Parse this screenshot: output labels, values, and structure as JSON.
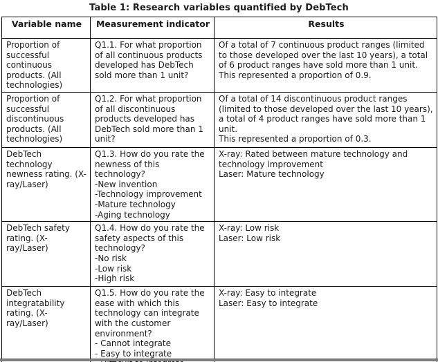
{
  "title": "Table 1: Research variables quantified by DebTech",
  "table": {
    "headers": [
      "Variable name",
      "Measurement indicator",
      "Results"
    ],
    "rows": [
      {
        "variable": "Proportion of successful continuous products. (All technologies)",
        "indicator": "Q1.1. For what proportion of all continuous products developed has DebTech sold more than 1 unit?",
        "results": [
          "Of a total of 7 continuous product ranges (limited to those developed over the last 10 years), a total of 6 product ranges have sold more than 1 unit.",
          "This represented a proportion of 0.9."
        ]
      },
      {
        "variable": "Proportion of successful discontinuous products. (All technologies)",
        "indicator": "Q1.2. For what proportion of all discontinuous products developed has DebTech sold more than 1 unit?",
        "results": [
          "Of a total of 14 discontinuous product ranges (limited to those developed over the last 10 years), a total of 4 product ranges have sold more than 1 unit.",
          "This represented a proportion of 0.3."
        ]
      },
      {
        "variable": "DebTech technology newness rating. (X-ray/Laser)",
        "indicator": [
          "Q1.3. How do you rate the newness of this technology?",
          "-New invention",
          "-Technology improvement",
          "-Mature technology",
          "-Aging technology"
        ],
        "results": [
          "X-ray: Rated between mature technology and technology improvement",
          "Laser: Mature technology"
        ]
      },
      {
        "variable": "DebTech safety rating. (X-ray/Laser)",
        "indicator": [
          "Q1.4. How do you rate the safety aspects of this technology?",
          "-No risk",
          "-Low risk",
          "-High risk"
        ],
        "results": [
          "X-ray: Low risk",
          "Laser: Low risk"
        ]
      },
      {
        "variable": "DebTech integratability rating. (X-ray/Laser)",
        "indicator": [
          "Q1.5. How do you rate the ease with which this technology can integrate with the customer environment?",
          "- Cannot integrate",
          "- Easy to integrate",
          "- Difficult to integrate"
        ],
        "results": [
          "X-ray: Easy to integrate",
          "Laser: Easy to integrate"
        ]
      }
    ]
  },
  "colors": {
    "border": "#000000",
    "text": "#1a1a1a",
    "background": "#ffffff",
    "bottom_bar": "#7f7f7f"
  }
}
